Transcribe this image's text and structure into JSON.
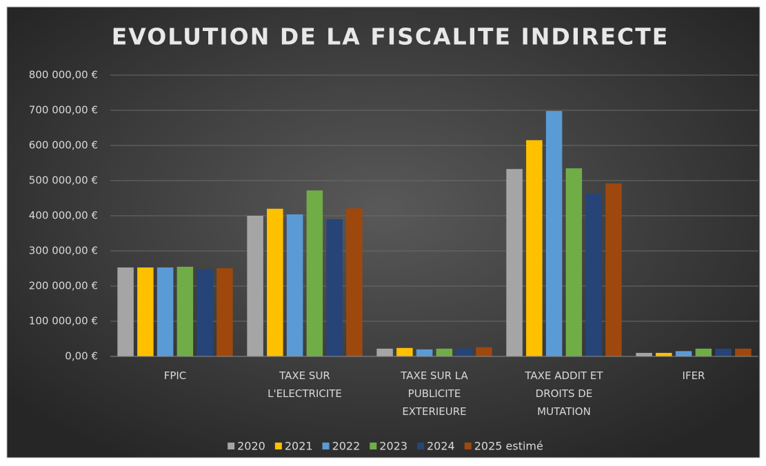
{
  "chart_data": {
    "type": "bar",
    "title": "EVOLUTION DE LA FISCALITE INDIRECTE",
    "categories": [
      "FPIC",
      "TAXE SUR L'ELECTRICITE",
      "TAXE SUR LA PUBLICITE EXTERIEURE",
      "TAXE ADDIT ET DROITS DE MUTATION",
      "IFER"
    ],
    "series": [
      {
        "name": "2020",
        "color": "#a5a5a5",
        "values": [
          253000,
          400000,
          22000,
          533000,
          10000
        ]
      },
      {
        "name": "2021",
        "color": "#ffc000",
        "values": [
          253000,
          420000,
          24000,
          615000,
          10000
        ]
      },
      {
        "name": "2022",
        "color": "#5b9bd5",
        "values": [
          253000,
          404000,
          20000,
          698000,
          15000
        ]
      },
      {
        "name": "2023",
        "color": "#70ad47",
        "values": [
          255000,
          472000,
          22000,
          535000,
          22000
        ]
      },
      {
        "name": "2024",
        "color": "#264478",
        "values": [
          247000,
          390000,
          23000,
          463000,
          22000
        ]
      },
      {
        "name": "2025 estimé",
        "color": "#9e480e",
        "values": [
          251000,
          421000,
          26000,
          492000,
          22000
        ]
      }
    ],
    "ylim": [
      0,
      800000
    ],
    "yticks": [
      {
        "value": 0,
        "label": "0,00 €"
      },
      {
        "value": 100000,
        "label": "100 000,00 €"
      },
      {
        "value": 200000,
        "label": "200 000,00 €"
      },
      {
        "value": 300000,
        "label": "300 000,00 €"
      },
      {
        "value": 400000,
        "label": "400 000,00 €"
      },
      {
        "value": 500000,
        "label": "500 000,00 €"
      },
      {
        "value": 600000,
        "label": "600 000,00 €"
      },
      {
        "value": 700000,
        "label": "700 000,00 €"
      },
      {
        "value": 800000,
        "label": "800 000,00 €"
      }
    ],
    "grid": true,
    "legend": "bottom"
  }
}
